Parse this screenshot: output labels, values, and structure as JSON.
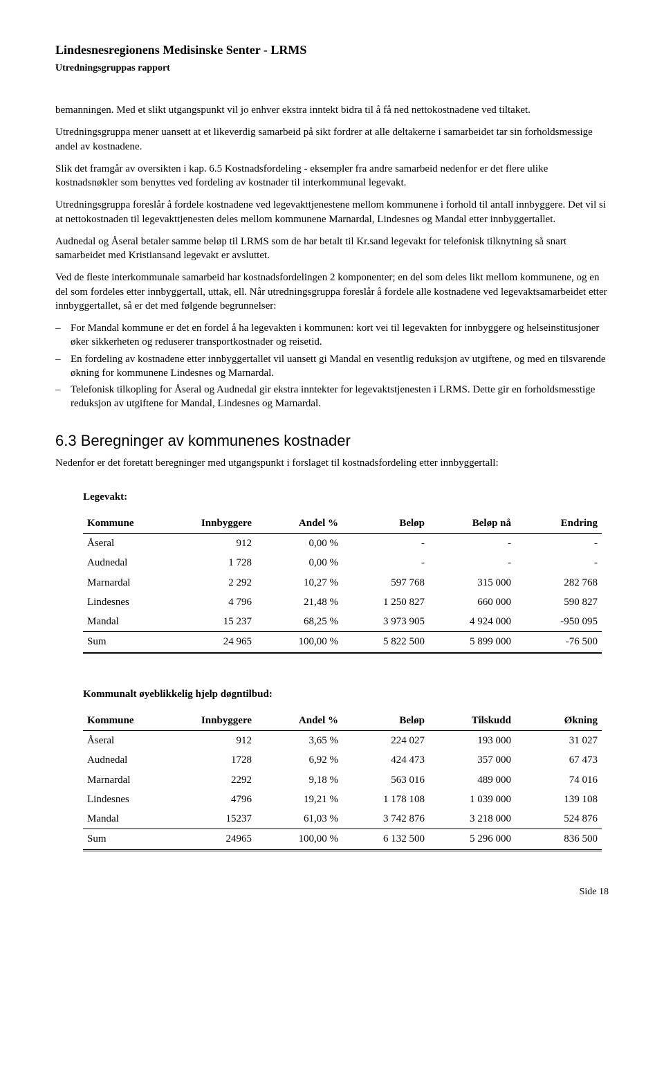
{
  "header": {
    "title": "Lindesnesregionens Medisinske Senter - LRMS",
    "subtitle": "Utredningsgruppas rapport"
  },
  "paragraphs": {
    "p1": "bemanningen. Med et slikt utgangspunkt vil jo enhver ekstra inntekt bidra til å få ned nettokostnadene ved tiltaket.",
    "p2": "Utredningsgruppa mener uansett at et likeverdig samarbeid på sikt fordrer at alle deltakerne i samarbeidet tar sin forholdsmessige andel av kostnadene.",
    "p3": "Slik det framgår av oversikten i kap. 6.5 Kostnadsfordeling - eksempler fra andre samarbeid nedenfor er det flere ulike kostnadsnøkler som benyttes ved fordeling av kostnader til interkommunal legevakt.",
    "p4": "Utredningsgruppa foreslår å fordele kostnadene ved legevakttjenestene mellom kommunene i forhold til antall innbyggere. Det vil si at nettokostnaden til legevakttjenesten deles mellom kommunene Marnardal, Lindesnes og Mandal etter innbyggertallet.",
    "p5": "Audnedal og Åseral betaler samme beløp til LRMS som de har betalt til Kr.sand legevakt for telefonisk tilknytning så snart samarbeidet med Kristiansand legevakt er avsluttet.",
    "p6": "Ved de fleste interkommunale samarbeid har kostnadsfordelingen 2 komponenter; en del som deles likt mellom kommunene, og en del som fordeles etter innbyggertall, uttak, ell. Når utredningsgruppa foreslår å fordele alle kostnadene ved legevaktsamarbeidet etter innbyggertallet, så er det med følgende begrunnelser:",
    "bullets": [
      "For Mandal kommune er det en fordel å ha legevakten i kommunen: kort vei til legevakten for innbyggere og helseinstitusjoner øker sikkerheten og reduserer transportkostnader og reisetid.",
      "En fordeling av kostnadene etter innbyggertallet vil uansett gi Mandal en vesentlig reduksjon av utgiftene, og med en tilsvarende økning for kommunene Lindesnes og Marnardal.",
      "Telefonisk tilkopling for Åseral og Audnedal gir ekstra inntekter for legevaktstjenesten i LRMS. Dette gir en forholdsmesstige reduksjon av utgiftene for Mandal, Lindesnes og Marnardal."
    ]
  },
  "section_6_3": {
    "heading": "6.3 Beregninger av kommunenes kostnader",
    "intro": "Nedenfor er det foretatt beregninger med utgangspunkt i forslaget til kostnadsfordeling etter innbyggertall:"
  },
  "table1": {
    "title": "Legevakt:",
    "columns": [
      "Kommune",
      "Innbyggere",
      "Andel %",
      "Beløp",
      "Beløp nå",
      "Endring"
    ],
    "rows": [
      [
        "Åseral",
        "912",
        "0,00 %",
        "-",
        "-",
        "-"
      ],
      [
        "Audnedal",
        "1 728",
        "0,00 %",
        "-",
        "-",
        "-"
      ],
      [
        "Marnardal",
        "2 292",
        "10,27 %",
        "597 768",
        "315 000",
        "282 768"
      ],
      [
        "Lindesnes",
        "4 796",
        "21,48 %",
        "1 250 827",
        "660 000",
        "590 827"
      ],
      [
        "Mandal",
        "15 237",
        "68,25 %",
        "3 973 905",
        "4 924 000",
        "-950 095"
      ]
    ],
    "sum": [
      "Sum",
      "24 965",
      "100,00 %",
      "5 822 500",
      "5 899 000",
      "-76 500"
    ]
  },
  "table2": {
    "title": "Kommunalt øyeblikkelig hjelp døgntilbud:",
    "columns": [
      "Kommune",
      "Innbyggere",
      "Andel %",
      "Beløp",
      "Tilskudd",
      "Økning"
    ],
    "rows": [
      [
        "Åseral",
        "912",
        "3,65 %",
        "224 027",
        "193 000",
        "31 027"
      ],
      [
        "Audnedal",
        "1728",
        "6,92 %",
        "424 473",
        "357 000",
        "67 473"
      ],
      [
        "Marnardal",
        "2292",
        "9,18 %",
        "563 016",
        "489 000",
        "74 016"
      ],
      [
        "Lindesnes",
        "4796",
        "19,21 %",
        "1 178 108",
        "1 039 000",
        "139 108"
      ],
      [
        "Mandal",
        "15237",
        "61,03 %",
        "3 742 876",
        "3 218 000",
        "524 876"
      ]
    ],
    "sum": [
      "Sum",
      "24965",
      "100,00 %",
      "6 132 500",
      "5 296 000",
      "836 500"
    ]
  },
  "footer": {
    "page": "Side 18"
  },
  "styles": {
    "background_color": "#ffffff",
    "text_color": "#000000",
    "font_family_body": "Times New Roman",
    "font_family_heading": "Arial",
    "body_font_size_pt": 11,
    "heading_font_size_pt": 16
  }
}
